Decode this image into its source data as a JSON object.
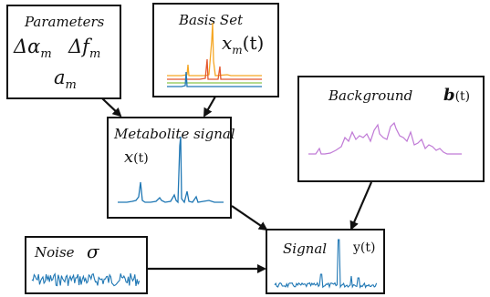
{
  "parameters": {
    "title": "Parameters",
    "line1": "Δα",
    "line1_sub": "m",
    "line1b": "Δf",
    "line1b_sub": "m",
    "line2": "a",
    "line2_sub": "m"
  },
  "basis_set": {
    "title": "Basis Set",
    "formula": "x",
    "formula_sub": "m",
    "formula_arg": "(t)",
    "trace_colors": [
      "#f5a623",
      "#e4572e",
      "#8bc34a",
      "#1f77b4"
    ]
  },
  "metabolite": {
    "title": "Metabolite signal",
    "formula": "x",
    "formula_arg": "(t)",
    "trace_color": "#1f77b4"
  },
  "background": {
    "title": "Background",
    "formula": "b",
    "formula_arg": "(t)",
    "trace_color": "#c07ad6"
  },
  "noise": {
    "title": "Noise",
    "symbol": "σ",
    "trace_color": "#1f77b4"
  },
  "signal": {
    "title": "Signal",
    "formula": "y",
    "formula_arg": "(t)",
    "trace_color": "#1f77b4"
  },
  "colors": {
    "border": "#111111",
    "arrow": "#111111"
  }
}
